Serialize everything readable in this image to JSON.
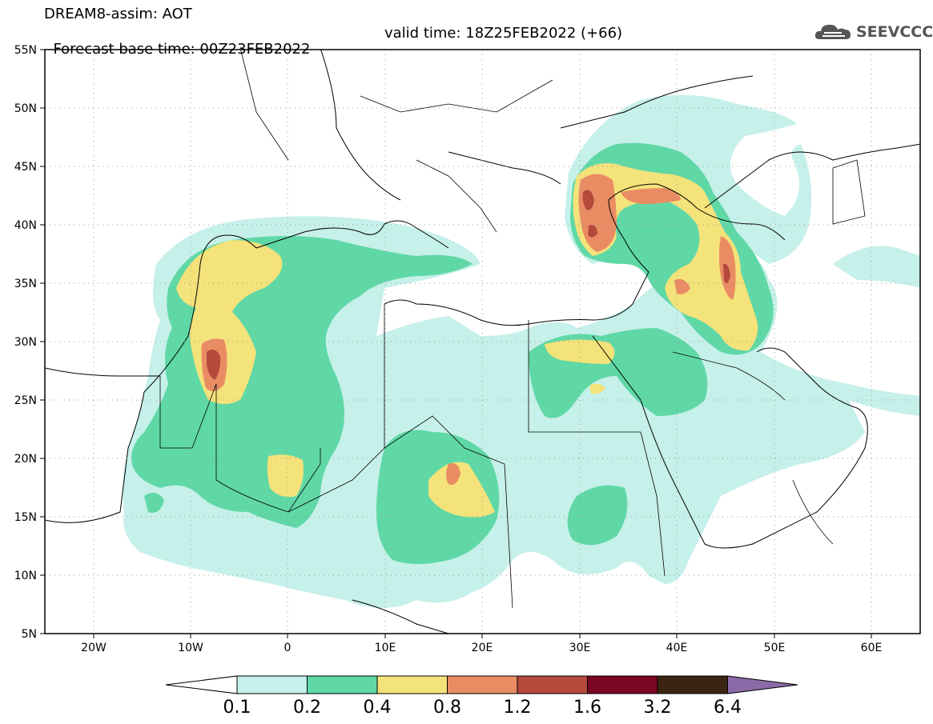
{
  "title": {
    "line1": "DREAM8-assim: AOT",
    "base_time": "Forecast base time: 00Z23FEB2022",
    "valid_time": "valid time: 18Z25FEB2022 (+66)"
  },
  "logo": {
    "text": "SEEVCCC",
    "icon": "cloud-icon"
  },
  "map": {
    "lat_labels": [
      "55N",
      "50N",
      "45N",
      "40N",
      "35N",
      "30N",
      "25N",
      "20N",
      "15N",
      "10N",
      "5N"
    ],
    "lon_labels": [
      "20W",
      "10W",
      "0",
      "10E",
      "20E",
      "30E",
      "40E",
      "50E",
      "60E"
    ],
    "lat_range": [
      5,
      55
    ],
    "lon_range": [
      -25,
      65
    ],
    "grid": "dotted",
    "variable": "Aerosol Optical Thickness"
  },
  "colorbar": {
    "levels": [
      "0.1",
      "0.2",
      "0.4",
      "0.8",
      "1.2",
      "1.6",
      "3.2",
      "6.4"
    ],
    "colors": [
      "#ffffff",
      "#c6f0ea",
      "#5fd8a6",
      "#f4e27a",
      "#e98c63",
      "#b5493c",
      "#7a0524",
      "#3b2412",
      "#8b6aa8"
    ]
  },
  "aot_colors": {
    "c01": "#c6f0ea",
    "c02": "#5fd8a6",
    "c04": "#f4e27a",
    "c08": "#e98c63",
    "c12": "#b5493c"
  }
}
